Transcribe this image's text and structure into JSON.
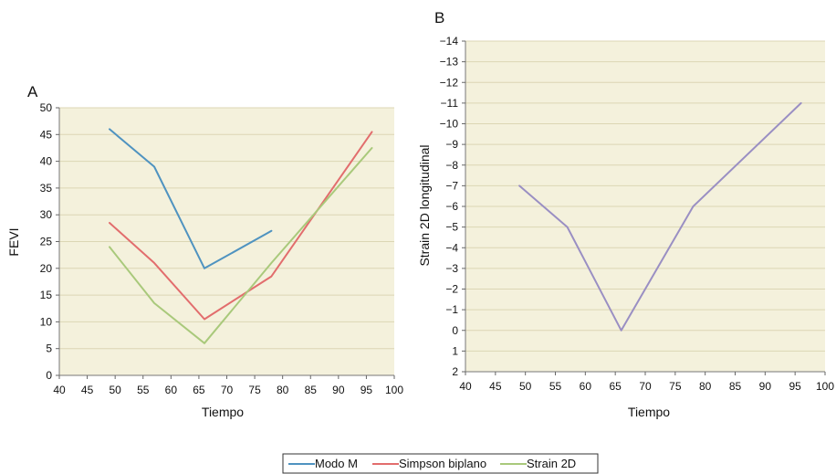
{
  "legend": {
    "items": [
      {
        "label": "Modo M",
        "color": "#4f93c0"
      },
      {
        "label": "Simpson biplano",
        "color": "#e26d6d"
      },
      {
        "label": "Strain 2D",
        "color": "#a9c97b"
      }
    ]
  },
  "chart_data": [
    {
      "panel": "A",
      "type": "line",
      "xlabel": "Tiempo",
      "ylabel": "FEVI",
      "xlim": [
        40,
        100
      ],
      "ylim": [
        0,
        50
      ],
      "xticks": [
        40,
        45,
        50,
        55,
        60,
        65,
        70,
        75,
        80,
        85,
        90,
        95,
        100
      ],
      "yticks": [
        0,
        5,
        10,
        15,
        20,
        25,
        30,
        35,
        40,
        45,
        50
      ],
      "grid": true,
      "background": "#f4f1dc",
      "gridColor": "#dcd6b4",
      "series": [
        {
          "name": "Modo M",
          "color": "#4f93c0",
          "x": [
            49,
            57,
            66,
            78
          ],
          "y": [
            46,
            39,
            20,
            27
          ]
        },
        {
          "name": "Simpson biplano",
          "color": "#e26d6d",
          "x": [
            49,
            57,
            66,
            78,
            96
          ],
          "y": [
            28.5,
            21,
            10.5,
            18.5,
            45.5
          ]
        },
        {
          "name": "Strain 2D",
          "color": "#a9c97b",
          "x": [
            49,
            57,
            66,
            78,
            96
          ],
          "y": [
            24,
            13.5,
            6,
            21,
            42.5
          ]
        }
      ]
    },
    {
      "panel": "B",
      "type": "line",
      "xlabel": "Tiempo",
      "ylabel": "Strain 2D longitudinal",
      "xlim": [
        40,
        100
      ],
      "ylim": [
        2,
        -14
      ],
      "y_inverted": true,
      "xticks": [
        40,
        45,
        50,
        55,
        60,
        65,
        70,
        75,
        80,
        85,
        90,
        95,
        100
      ],
      "yticks": [
        -14,
        -13,
        -12,
        -11,
        -10,
        -9,
        -8,
        -7,
        -6,
        -5,
        -4,
        -3,
        -2,
        -1,
        0,
        1,
        2
      ],
      "grid": true,
      "background": "#f4f1dc",
      "gridColor": "#dcd6b4",
      "series": [
        {
          "color": "#9a8fc3",
          "x": [
            49,
            57,
            66,
            78,
            96
          ],
          "y": [
            -7,
            -5,
            0,
            -6,
            -11
          ]
        }
      ]
    }
  ]
}
